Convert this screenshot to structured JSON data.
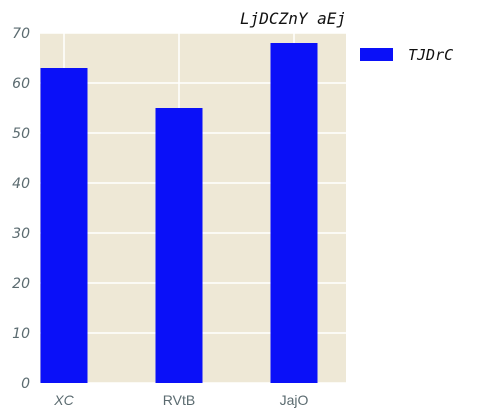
{
  "chart_data": {
    "type": "bar",
    "title": "LjDCZnY aEj",
    "categories": [
      "XC",
      "RVtB",
      "JajO"
    ],
    "series": [
      {
        "name": "TJDrC",
        "values": [
          63,
          55,
          68
        ]
      }
    ],
    "ylim": [
      0,
      70
    ],
    "yticks": [
      0,
      10,
      20,
      30,
      40,
      50,
      60,
      70
    ],
    "grid": true,
    "legend": "right, outside plot",
    "colors": {
      "bar": "#0a10f8",
      "plot_background": "#eee8d6",
      "grid": "#ffffff"
    }
  }
}
